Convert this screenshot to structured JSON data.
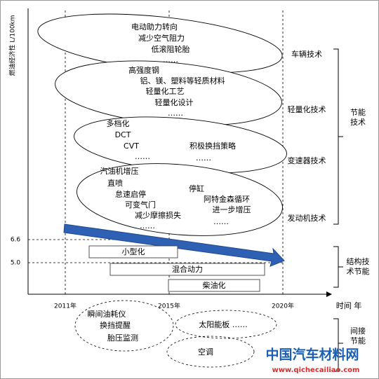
{
  "axis": {
    "y_label": "燃油经济性 L/100km",
    "y_marks": [
      "6.6",
      "5.0"
    ],
    "x_marks": [
      "2011年",
      "2015年",
      "2020年"
    ],
    "x_label": "时间 年"
  },
  "groups": [
    {
      "label": "车辆技术",
      "items": [
        "电动助力转向",
        "减少空气阻力",
        "低滚阻轮胎",
        "……"
      ]
    },
    {
      "label": "轻量化技术",
      "items": [
        "高强度钢",
        "铝、镁、塑料等轻质材料",
        "轻量化工艺",
        "轻量化设计",
        "……"
      ]
    },
    {
      "label": "变速器技术",
      "items": [
        "多档化",
        "DCT",
        "CVT",
        "……",
        "积极换挡策略",
        "……"
      ]
    },
    {
      "label": "发动机技术",
      "items": [
        "汽油机增压",
        "直喷",
        "怠速启停",
        "可变气门",
        "减少摩擦损失",
        "……",
        "停缸",
        "阿特金森循环",
        "进一步增压",
        "……"
      ]
    }
  ],
  "group_label": "节能技术",
  "structure": {
    "items": [
      "小型化",
      "混合动力",
      "柴油化"
    ],
    "label": "结构技术节能"
  },
  "indirect": {
    "items": [
      "瞬间油耗仪",
      "换挡提醒",
      "胎压监测",
      "太阳能板 ……",
      "空调"
    ],
    "label": "间接节能"
  },
  "watermark": {
    "name": "中国汽车材料网",
    "url": "www.qichecailiao.com"
  }
}
